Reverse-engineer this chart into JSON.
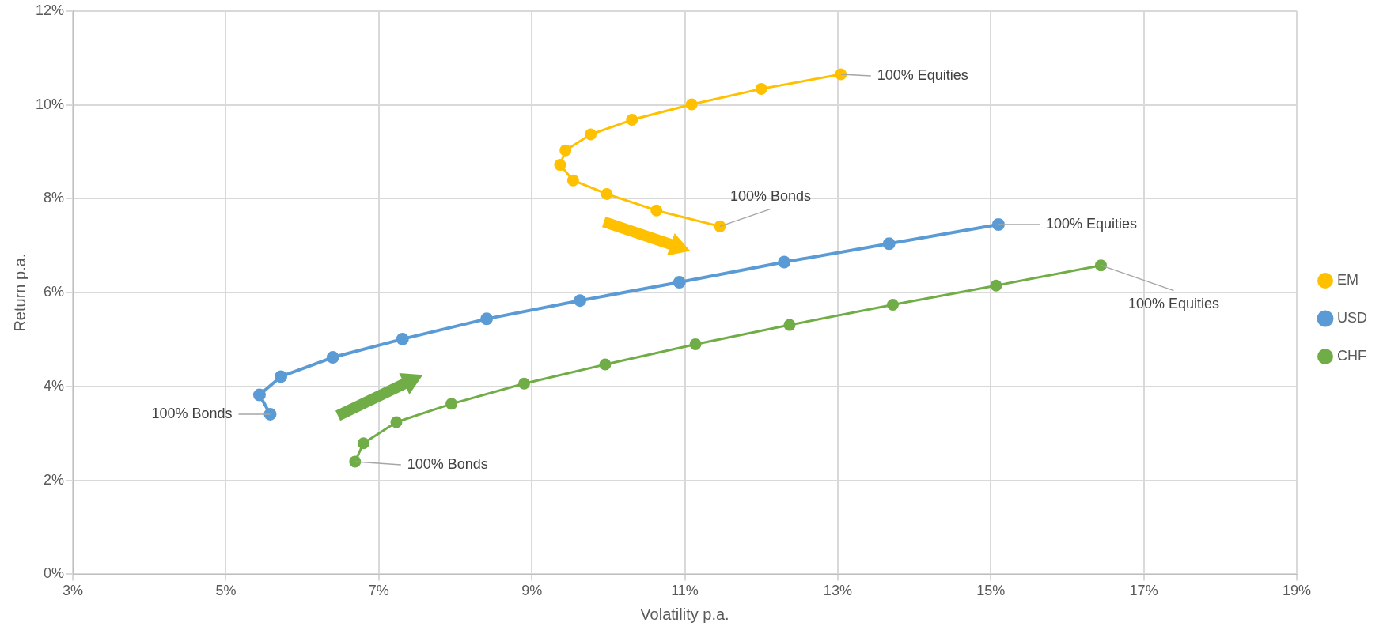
{
  "chart_data": {
    "type": "line",
    "xlabel": "Volatility p.a.",
    "ylabel": "Return p.a.",
    "xlim": [
      3,
      19
    ],
    "xticks": [
      {
        "value": 3,
        "label": "3%"
      },
      {
        "value": 5,
        "label": "5%"
      },
      {
        "value": 7,
        "label": "7%"
      },
      {
        "value": 9,
        "label": "9%"
      },
      {
        "value": 11,
        "label": "11%"
      },
      {
        "value": 13,
        "label": "13%"
      },
      {
        "value": 15,
        "label": "15%"
      },
      {
        "value": 17,
        "label": "17%"
      },
      {
        "value": 19,
        "label": "19%"
      }
    ],
    "ylim": [
      0,
      12
    ],
    "yticks": [
      {
        "value": 0,
        "label": "0%"
      },
      {
        "value": 2,
        "label": "2%"
      },
      {
        "value": 4,
        "label": "4%"
      },
      {
        "value": 6,
        "label": "6%"
      },
      {
        "value": 8,
        "label": "8%"
      },
      {
        "value": 10,
        "label": "10%"
      },
      {
        "value": 12,
        "label": "12%"
      }
    ],
    "grid": true,
    "legend": "right",
    "marker": "circle",
    "line_style": "solid",
    "series": [
      {
        "name": "EM",
        "color": "#ffc000",
        "x": [
          13.04,
          12.0,
          11.09,
          10.31,
          9.77,
          9.44,
          9.37,
          9.54,
          9.98,
          10.63,
          11.46
        ],
        "values": [
          10.65,
          10.34,
          10.01,
          9.68,
          9.37,
          9.03,
          8.72,
          8.39,
          8.1,
          7.75,
          7.41
        ]
      },
      {
        "name": "USD",
        "color": "#5b9bd5",
        "x": [
          15.1,
          13.67,
          12.3,
          10.93,
          9.63,
          8.41,
          7.31,
          6.4,
          5.72,
          5.44,
          5.58
        ],
        "values": [
          7.45,
          7.04,
          6.65,
          6.22,
          5.83,
          5.44,
          5.01,
          4.62,
          4.21,
          3.82,
          3.41
        ]
      },
      {
        "name": "CHF",
        "color": "#70ad47",
        "x": [
          16.44,
          15.07,
          13.72,
          12.37,
          11.14,
          9.96,
          8.9,
          7.95,
          7.23,
          6.8,
          6.69
        ],
        "values": [
          6.58,
          6.15,
          5.74,
          5.31,
          4.9,
          4.47,
          4.06,
          3.63,
          3.24,
          2.79,
          2.4
        ]
      }
    ],
    "annotations": [
      {
        "text": "100% Equities",
        "x": 13.04,
        "y": 10.65
      },
      {
        "text": "100% Bonds",
        "x": 11.46,
        "y": 7.41
      },
      {
        "text": "100% Equities",
        "x": 15.1,
        "y": 7.45
      },
      {
        "text": "100% Bonds",
        "x": 5.58,
        "y": 3.41
      },
      {
        "text": "100% Equities",
        "x": 16.44,
        "y": 6.58
      },
      {
        "text": "100% Bonds",
        "x": 6.69,
        "y": 2.4
      }
    ]
  }
}
